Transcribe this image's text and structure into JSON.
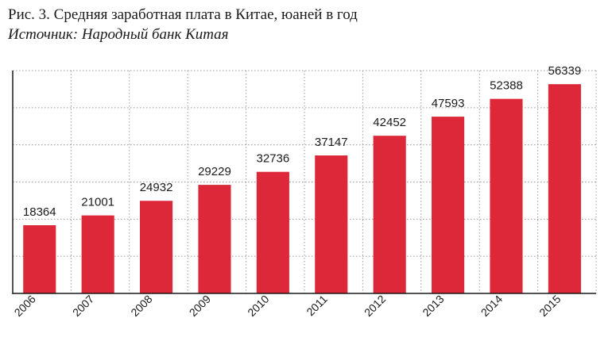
{
  "chart_data": {
    "type": "bar",
    "title": "Рис. 3. Средняя заработная плата в Китае, юаней в год",
    "subtitle": "Источник: Народный банк Китая",
    "categories": [
      "2006",
      "2007",
      "2008",
      "2009",
      "2010",
      "2011",
      "2012",
      "2013",
      "2014",
      "2015"
    ],
    "values": [
      18364,
      21001,
      24932,
      29229,
      32736,
      37147,
      42452,
      47593,
      52388,
      56339
    ],
    "xlabel": "",
    "ylabel": "",
    "ylim": [
      0,
      60000
    ],
    "grid": true,
    "legend": "none",
    "colors": {
      "bar": "#dc2839",
      "grid": "#9a9a9a",
      "axis": "#1a1a1a"
    }
  }
}
